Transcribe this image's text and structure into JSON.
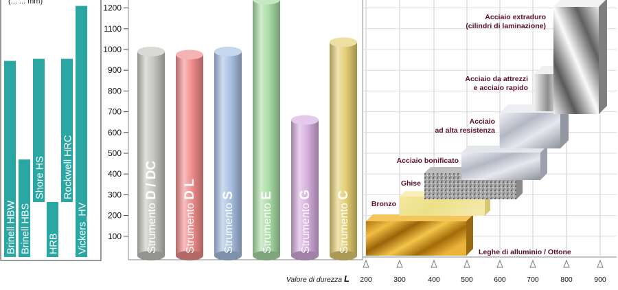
{
  "chart_data": {
    "type": "bar",
    "y_axis": {
      "ylim": [
        0,
        1250
      ],
      "ticks": [
        100,
        200,
        300,
        400,
        500,
        600,
        700,
        800,
        900,
        1000,
        1100,
        1200
      ],
      "tick_labels": [
        "100",
        "200",
        "300",
        "400",
        "500",
        "600",
        "700",
        "800",
        "900",
        "1000",
        "1100",
        "1200"
      ],
      "unit_label_partial": "(... ... mm)"
    },
    "scales": [
      {
        "label": "Brinell HBW",
        "low": 0,
        "high": 945
      },
      {
        "label": "Brinell HBS",
        "low": 0,
        "high": 470
      },
      {
        "label": "Shore HS",
        "low": 265,
        "high": 955
      },
      {
        "label": "HRB",
        "low": 0,
        "high": 265
      },
      {
        "label": "Rockwell HRC",
        "low": 265,
        "high": 955
      },
      {
        "label": "Vickers_HV",
        "low": 0,
        "high": 1210
      }
    ],
    "instruments": [
      {
        "prefix": "Strumento",
        "name": "D / DC",
        "value": 990,
        "color": "#c4c4c0"
      },
      {
        "prefix": "Strumento",
        "name": "D L",
        "value": 975,
        "color": "#f08a8a"
      },
      {
        "prefix": "Strumento",
        "name": "S",
        "value": 990,
        "color": "#a8c0e2"
      },
      {
        "prefix": "Strumento",
        "name": "E",
        "value": 1240,
        "color": "#a8dca4"
      },
      {
        "prefix": "Strumento",
        "name": "G",
        "value": 660,
        "color": "#d6aede"
      },
      {
        "prefix": "Strumento",
        "name": "C",
        "value": 1035,
        "color": "#e3cd72"
      }
    ],
    "x_axis": {
      "label_prefix": "Valore di durezza",
      "label_symbol": "L",
      "ticks": [
        200,
        300,
        400,
        500,
        600,
        700,
        800,
        900
      ],
      "tick_labels": [
        "200",
        "300",
        "400",
        "500",
        "600",
        "700",
        "800",
        "900"
      ]
    },
    "materials": [
      {
        "label": "Leghe di alluminio / Ottone",
        "type": "brass"
      },
      {
        "label": "Bronzo",
        "type": "bronze"
      },
      {
        "label": "Ghise",
        "type": "granite"
      },
      {
        "label": "Acciaio bonificato",
        "type": "steel"
      },
      {
        "label_lines": [
          "Acciaio",
          "ad alta resistenza"
        ],
        "type": "steel"
      },
      {
        "label_lines": [
          "Acciaio da attrezzi",
          "e acciaio rapido"
        ],
        "type": "steel"
      },
      {
        "label_lines": [
          "Acciaio extraduro",
          "(cilindri di laminazione)"
        ],
        "type": "steel"
      }
    ],
    "colors": {
      "scale_bar": "#2aa7a3",
      "grid": "#c8c8c8",
      "material_label": "#5a0e28"
    }
  }
}
